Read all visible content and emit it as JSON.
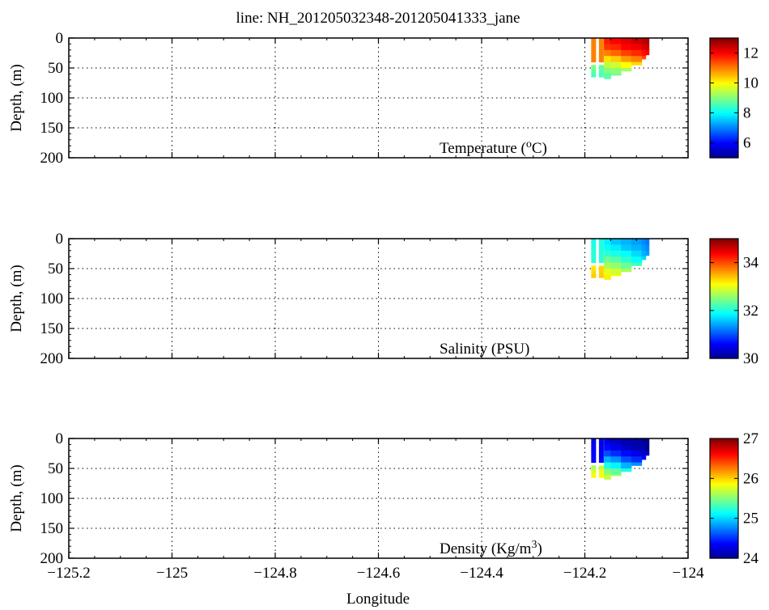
{
  "title": "line: NH_201205032348-201205041333_jane",
  "xlabel": "Longitude",
  "colormap": "jet",
  "colormap_stops": [
    "#00008f",
    "#0000ff",
    "#0080ff",
    "#00ffff",
    "#80ff80",
    "#ffff00",
    "#ff8000",
    "#ff0000",
    "#800000"
  ],
  "chart_data": [
    {
      "type": "heatmap",
      "name": "temperature",
      "panel_label": "Temperature (",
      "panel_label_sup": "o",
      "panel_label_end": "C)",
      "ylabel": "Depth, (m)",
      "xlim": [
        -125.2,
        -124
      ],
      "ylim": [
        0,
        200
      ],
      "y_inverted": true,
      "grid": true,
      "x_ticks": [
        "-125.2",
        "-125",
        "-124.8",
        "-124.6",
        "-124.4",
        "-124.2",
        "-124"
      ],
      "x_tick_values": [
        -125.2,
        -125,
        -124.8,
        -124.6,
        -124.4,
        -124.2,
        -124
      ],
      "y_ticks": [
        "0",
        "50",
        "100",
        "150",
        "200"
      ],
      "y_tick_values": [
        0,
        50,
        100,
        150,
        200
      ],
      "clim": [
        5,
        13
      ],
      "colorbar_ticks": [
        "6",
        "8",
        "10",
        "12"
      ],
      "colorbar_tick_values": [
        6,
        8,
        10,
        12
      ],
      "casts": [
        {
          "x": -124.183,
          "depths": [
            0,
            40
          ],
          "values": [
            11.0,
            11.0
          ]
        },
        {
          "x": -124.183,
          "depths": [
            45,
            65
          ],
          "values": [
            9.0,
            8.5
          ]
        },
        {
          "x": -124.168,
          "depths": [
            0,
            40
          ],
          "values": [
            11.0,
            11.0
          ]
        },
        {
          "x": -124.168,
          "depths": [
            45,
            65
          ],
          "values": [
            8.8,
            8.5
          ]
        }
      ],
      "section": {
        "x": [
          -124.163,
          -124.15,
          -124.13,
          -124.11,
          -124.09,
          -124.082
        ],
        "bottom": [
          68,
          62,
          55,
          45,
          35,
          28
        ],
        "depths": [
          0,
          10,
          20,
          30,
          40,
          50,
          60,
          68
        ],
        "values": [
          [
            11.8,
            11.6,
            11.0,
            10.2,
            9.5,
            9.0,
            8.7,
            8.5
          ],
          [
            12.0,
            11.7,
            11.2,
            10.4,
            9.6,
            9.1,
            8.8,
            8.6
          ],
          [
            12.2,
            12.0,
            11.5,
            10.8,
            10.0,
            9.3,
            9.0,
            8.8
          ],
          [
            12.4,
            12.1,
            11.7,
            11.0,
            10.3,
            9.6,
            9.2,
            9.0
          ],
          [
            12.5,
            12.3,
            11.9,
            11.4,
            10.8,
            10.0,
            9.5,
            9.2
          ],
          [
            12.6,
            12.4,
            12.0,
            11.6,
            11.0,
            10.2,
            9.8,
            9.5
          ]
        ]
      }
    },
    {
      "type": "heatmap",
      "name": "salinity",
      "panel_label": "Salinity (PSU)",
      "panel_label_sup": "",
      "panel_label_end": "",
      "ylabel": "Depth, (m)",
      "xlim": [
        -125.2,
        -124
      ],
      "ylim": [
        0,
        200
      ],
      "y_inverted": true,
      "grid": true,
      "x_ticks": [
        "-125.2",
        "-125",
        "-124.8",
        "-124.6",
        "-124.4",
        "-124.2",
        "-124"
      ],
      "x_tick_values": [
        -125.2,
        -125,
        -124.8,
        -124.6,
        -124.4,
        -124.2,
        -124
      ],
      "y_ticks": [
        "0",
        "50",
        "100",
        "150",
        "200"
      ],
      "y_tick_values": [
        0,
        50,
        100,
        150,
        200
      ],
      "clim": [
        30,
        35
      ],
      "colorbar_ticks": [
        "30",
        "32",
        "34"
      ],
      "colorbar_tick_values": [
        30,
        32,
        34
      ],
      "casts": [
        {
          "x": -124.183,
          "depths": [
            0,
            40
          ],
          "values": [
            32.0,
            32.1
          ]
        },
        {
          "x": -124.183,
          "depths": [
            45,
            65
          ],
          "values": [
            33.2,
            33.4
          ]
        },
        {
          "x": -124.168,
          "depths": [
            0,
            40
          ],
          "values": [
            32.0,
            32.1
          ]
        },
        {
          "x": -124.168,
          "depths": [
            45,
            65
          ],
          "values": [
            33.3,
            33.4
          ]
        }
      ],
      "section": {
        "x": [
          -124.163,
          -124.15,
          -124.13,
          -124.11,
          -124.09,
          -124.082
        ],
        "bottom": [
          68,
          62,
          55,
          45,
          35,
          28
        ],
        "depths": [
          0,
          10,
          20,
          30,
          40,
          50,
          60,
          68
        ],
        "values": [
          [
            31.8,
            31.9,
            32.1,
            32.4,
            32.7,
            33.0,
            33.2,
            33.4
          ],
          [
            31.6,
            31.8,
            32.0,
            32.3,
            32.6,
            32.9,
            33.1,
            33.3
          ],
          [
            31.5,
            31.6,
            31.9,
            32.1,
            32.4,
            32.7,
            33.0,
            33.1
          ],
          [
            31.4,
            31.5,
            31.7,
            31.9,
            32.2,
            32.5,
            32.8,
            33.0
          ],
          [
            31.3,
            31.4,
            31.5,
            31.7,
            32.0,
            32.3,
            32.6,
            32.8
          ],
          [
            31.2,
            31.3,
            31.4,
            31.6,
            31.9,
            32.2,
            32.5,
            32.7
          ]
        ]
      }
    },
    {
      "type": "heatmap",
      "name": "density",
      "panel_label": "Density (Kg/m",
      "panel_label_sup": "3",
      "panel_label_end": ")",
      "ylabel": "Depth, (m)",
      "xlabel": "Longitude",
      "xlim": [
        -125.2,
        -124
      ],
      "ylim": [
        0,
        200
      ],
      "y_inverted": true,
      "grid": true,
      "x_ticks": [
        "-125.2",
        "-125",
        "-124.8",
        "-124.6",
        "-124.4",
        "-124.2",
        "-124"
      ],
      "x_tick_values": [
        -125.2,
        -125,
        -124.8,
        -124.6,
        -124.4,
        -124.2,
        -124
      ],
      "y_ticks": [
        "0",
        "50",
        "100",
        "150",
        "200"
      ],
      "y_tick_values": [
        0,
        50,
        100,
        150,
        200
      ],
      "clim": [
        24,
        27
      ],
      "colorbar_ticks": [
        "24",
        "25",
        "26",
        "27"
      ],
      "colorbar_tick_values": [
        24,
        25,
        26,
        27
      ],
      "casts": [
        {
          "x": -124.183,
          "depths": [
            0,
            40
          ],
          "values": [
            24.3,
            24.4
          ]
        },
        {
          "x": -124.183,
          "depths": [
            45,
            65
          ],
          "values": [
            25.6,
            25.9
          ]
        },
        {
          "x": -124.168,
          "depths": [
            0,
            40
          ],
          "values": [
            24.3,
            24.4
          ]
        },
        {
          "x": -124.168,
          "depths": [
            45,
            65
          ],
          "values": [
            25.7,
            25.9
          ]
        }
      ],
      "section": {
        "x": [
          -124.163,
          -124.15,
          -124.13,
          -124.11,
          -124.09,
          -124.082
        ],
        "bottom": [
          68,
          62,
          55,
          45,
          35,
          28
        ],
        "depths": [
          0,
          10,
          20,
          30,
          40,
          50,
          60,
          68
        ],
        "values": [
          [
            24.3,
            24.4,
            24.6,
            24.9,
            25.2,
            25.5,
            25.7,
            25.9
          ],
          [
            24.2,
            24.3,
            24.5,
            24.8,
            25.1,
            25.4,
            25.6,
            25.8
          ],
          [
            24.1,
            24.2,
            24.4,
            24.6,
            24.9,
            25.2,
            25.5,
            25.6
          ],
          [
            24.1,
            24.1,
            24.3,
            24.5,
            24.8,
            25.0,
            25.3,
            25.5
          ],
          [
            24.0,
            24.1,
            24.2,
            24.4,
            24.6,
            24.9,
            25.1,
            25.3
          ],
          [
            24.0,
            24.0,
            24.1,
            24.3,
            24.5,
            24.8,
            25.0,
            25.2
          ]
        ]
      }
    }
  ]
}
